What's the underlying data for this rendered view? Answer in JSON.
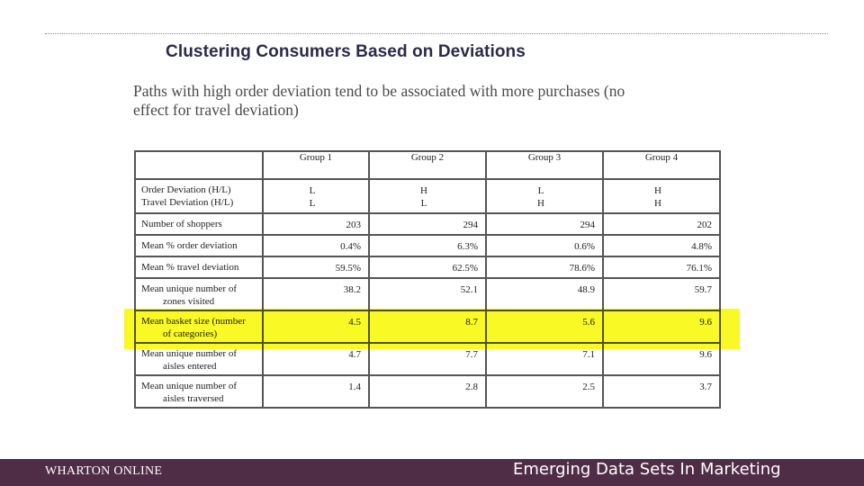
{
  "slide": {
    "title": "Clustering Consumers Based on Deviations",
    "subtitle": "Paths with high order deviation tend to be associated with more purchases (no effect for travel deviation)"
  },
  "table": {
    "columns": [
      "",
      "Group 1",
      "Group 2",
      "Group 3",
      "Group 4"
    ],
    "deviation_labels": [
      "Order Deviation (H/L)",
      "Travel Deviation (H/L)"
    ],
    "deviation_values": [
      [
        "L",
        "L"
      ],
      [
        "H",
        "L"
      ],
      [
        "L",
        "H"
      ],
      [
        "H",
        "H"
      ]
    ],
    "rows": [
      {
        "label": [
          "Number of shoppers"
        ],
        "values": [
          "203",
          "294",
          "294",
          "202"
        ]
      },
      {
        "label": [
          "Mean % order deviation"
        ],
        "values": [
          "0.4%",
          "6.3%",
          "0.6%",
          "4.8%"
        ]
      },
      {
        "label": [
          "Mean % travel deviation"
        ],
        "values": [
          "59.5%",
          "62.5%",
          "78.6%",
          "76.1%"
        ]
      },
      {
        "label": [
          "Mean unique number of",
          "zones visited"
        ],
        "values": [
          "38.2",
          "52.1",
          "48.9",
          "59.7"
        ]
      },
      {
        "label": [
          "Mean basket size (number",
          "of categories)"
        ],
        "values": [
          "4.5",
          "8.7",
          "5.6",
          "9.6"
        ],
        "highlighted": true
      },
      {
        "label": [
          "Mean unique number of",
          "aisles entered"
        ],
        "values": [
          "4.7",
          "7.7",
          "7.1",
          "9.6"
        ]
      },
      {
        "label": [
          "Mean unique number of",
          "aisles traversed"
        ],
        "values": [
          "1.4",
          "2.8",
          "2.5",
          "3.7"
        ]
      }
    ],
    "highlight_color": "#f8f800"
  },
  "footer": {
    "left": "WHARTON ONLINE",
    "right": "Emerging Data Sets In Marketing",
    "background": "#4f2d47"
  }
}
